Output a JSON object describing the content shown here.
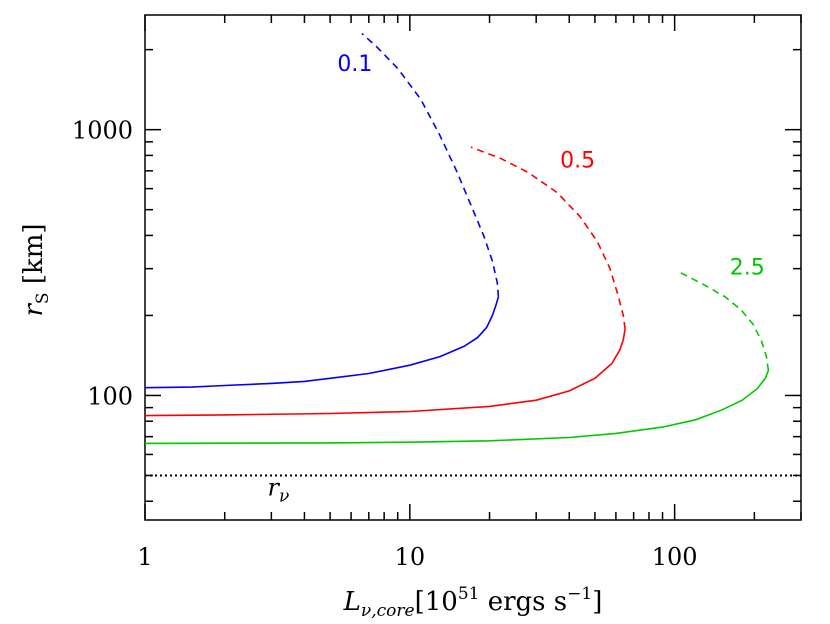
{
  "chart_data": {
    "type": "line",
    "xscale": "log",
    "yscale": "log",
    "xlim": [
      1,
      300
    ],
    "ylim": [
      34,
      2700
    ],
    "x_ticks": [
      1,
      10,
      100
    ],
    "x_tick_labels": [
      "1",
      "10",
      "100"
    ],
    "y_ticks": [
      100,
      1000
    ],
    "y_tick_labels": [
      "100",
      "1000"
    ],
    "xlabel": {
      "main": "L",
      "sub": "ν,core",
      "bracket_open": "[10",
      "sup1": "51",
      "middle": " ergs s",
      "sup2": "−1",
      "bracket_close": "]"
    },
    "ylabel": {
      "main": "r",
      "sub": "S",
      "unit": "[km]"
    },
    "grid": false,
    "legend": "none",
    "series": [
      {
        "name": "0.1",
        "color": "#0000ff",
        "solid": [
          [
            1,
            107
          ],
          [
            1.5,
            107.5
          ],
          [
            2,
            109
          ],
          [
            3,
            111
          ],
          [
            4,
            113
          ],
          [
            5,
            116
          ],
          [
            7,
            121
          ],
          [
            10,
            130
          ],
          [
            13,
            140
          ],
          [
            16,
            153
          ],
          [
            18,
            165
          ],
          [
            19.5,
            180
          ],
          [
            20.5,
            200
          ],
          [
            21.2,
            220
          ],
          [
            21.6,
            235
          ]
        ],
        "dashed": [
          [
            21.6,
            235
          ],
          [
            21.4,
            265
          ],
          [
            20.5,
            320
          ],
          [
            19,
            400
          ],
          [
            17,
            520
          ],
          [
            15,
            700
          ],
          [
            13,
            950
          ],
          [
            11,
            1300
          ],
          [
            9,
            1700
          ],
          [
            7.5,
            2050
          ],
          [
            6.6,
            2300
          ]
        ]
      },
      {
        "name": "0.5",
        "color": "#ff0000",
        "solid": [
          [
            1,
            84
          ],
          [
            2,
            84.5
          ],
          [
            5,
            85.5
          ],
          [
            10,
            87
          ],
          [
            20,
            91
          ],
          [
            30,
            96
          ],
          [
            40,
            104
          ],
          [
            50,
            116
          ],
          [
            58,
            132
          ],
          [
            62,
            148
          ],
          [
            64,
            162
          ],
          [
            65,
            178
          ]
        ],
        "dashed": [
          [
            65,
            178
          ],
          [
            64,
            200
          ],
          [
            61,
            240
          ],
          [
            57,
            300
          ],
          [
            51,
            380
          ],
          [
            44,
            470
          ],
          [
            36,
            580
          ],
          [
            28,
            690
          ],
          [
            22,
            780
          ],
          [
            17,
            860
          ]
        ]
      },
      {
        "name": "2.5",
        "color": "#00c800",
        "solid": [
          [
            1,
            66
          ],
          [
            5,
            66.3
          ],
          [
            10,
            66.7
          ],
          [
            20,
            67.5
          ],
          [
            40,
            69.5
          ],
          [
            60,
            72
          ],
          [
            90,
            76
          ],
          [
            120,
            81
          ],
          [
            150,
            88
          ],
          [
            180,
            96
          ],
          [
            205,
            106
          ],
          [
            220,
            116
          ],
          [
            226,
            124
          ]
        ],
        "dashed": [
          [
            226,
            124
          ],
          [
            222,
            140
          ],
          [
            213,
            160
          ],
          [
            198,
            185
          ],
          [
            178,
            210
          ],
          [
            155,
            235
          ],
          [
            130,
            260
          ],
          [
            105,
            290
          ]
        ]
      }
    ],
    "annotations": [
      {
        "text": "0.1",
        "x": 6.2,
        "y": 1660,
        "color": "#0000ff"
      },
      {
        "text": "0.5",
        "x": 43,
        "y": 720,
        "color": "#ff0000"
      },
      {
        "text": "2.5",
        "x": 188,
        "y": 285,
        "color": "#00c800"
      }
    ],
    "reference_line": {
      "label_main": "r",
      "label_sub": "ν",
      "y": 50,
      "style": "dotted",
      "label_x": 2.9,
      "label_y": 42
    }
  }
}
